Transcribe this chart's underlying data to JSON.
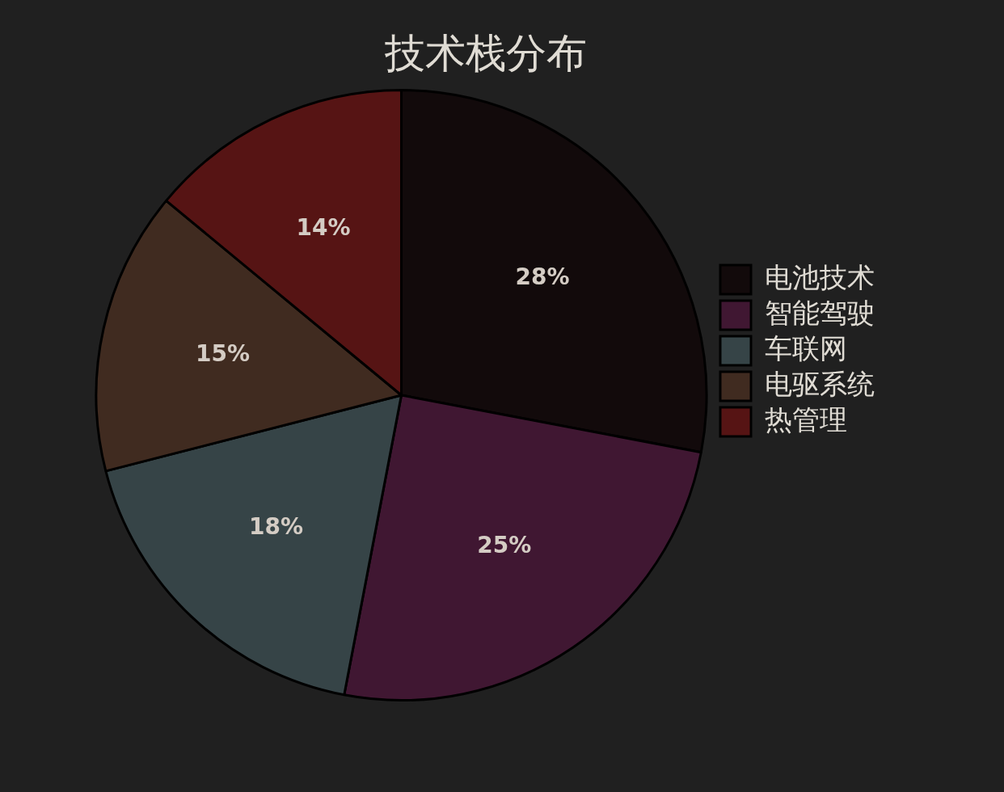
{
  "chart_data": {
    "type": "pie",
    "title": "技术栈分布",
    "categories": [
      "电池技术",
      "智能驾驶",
      "车联网",
      "电驱系统",
      "热管理"
    ],
    "values": [
      28,
      25,
      18,
      15,
      14
    ],
    "value_labels": [
      "28%",
      "25%",
      "18%",
      "15%",
      "14%"
    ],
    "colors": [
      "#120a0b",
      "#401732",
      "#364447",
      "#402b20",
      "#561414"
    ],
    "legend": "right"
  }
}
